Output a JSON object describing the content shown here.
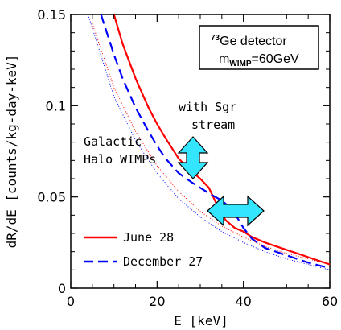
{
  "chart_data": {
    "type": "line",
    "xlabel": "E [keV]",
    "ylabel": "dR/dE [counts/kg-day-keV]",
    "xlim": [
      0,
      60
    ],
    "ylim": [
      0,
      0.15
    ],
    "x_ticks": [
      0,
      20,
      40,
      60
    ],
    "x_tick_labels": [
      "0",
      "20",
      "40",
      "60"
    ],
    "y_ticks": [
      0,
      0.05,
      0.1,
      0.15
    ],
    "y_tick_labels": [
      "0",
      "0.05",
      "0.1",
      "0.15"
    ],
    "grid": false,
    "legend_position": "bottom-left",
    "series": [
      {
        "name": "June 28",
        "color": "#ff0000",
        "style": "solid",
        "x": [
          10,
          12,
          15,
          18,
          20,
          22,
          25,
          28,
          30,
          32,
          33,
          34,
          35,
          36,
          38,
          40,
          42,
          45,
          50,
          55,
          60
        ],
        "y": [
          0.15,
          0.134,
          0.115,
          0.099,
          0.09,
          0.082,
          0.071,
          0.064,
          0.06,
          0.055,
          0.05,
          0.045,
          0.04,
          0.037,
          0.033,
          0.031,
          0.028,
          0.025,
          0.021,
          0.017,
          0.013
        ]
      },
      {
        "name": "December 27",
        "color": "#0000ff",
        "style": "dashed",
        "x": [
          7,
          10,
          12,
          15,
          18,
          20,
          22,
          25,
          28,
          30,
          32,
          35,
          37,
          38,
          40,
          42,
          45,
          50,
          55,
          60
        ],
        "y": [
          0.15,
          0.128,
          0.115,
          0.099,
          0.086,
          0.078,
          0.071,
          0.063,
          0.058,
          0.055,
          0.052,
          0.048,
          0.044,
          0.041,
          0.033,
          0.027,
          0.022,
          0.018,
          0.014,
          0.011
        ]
      },
      {
        "name": "Galactic Halo WIMPs (red dotted)",
        "color": "#ff0000",
        "style": "dotted",
        "x": [
          5,
          10,
          15,
          20,
          25,
          30,
          35,
          40,
          45,
          50,
          55,
          60
        ],
        "y": [
          0.145,
          0.11,
          0.086,
          0.067,
          0.053,
          0.042,
          0.034,
          0.028,
          0.023,
          0.019,
          0.016,
          0.013
        ]
      },
      {
        "name": "Galactic Halo WIMPs (blue dotted)",
        "color": "#0000ff",
        "style": "dotted",
        "x": [
          4,
          10,
          15,
          20,
          25,
          30,
          35,
          40,
          45,
          50,
          55,
          60
        ],
        "y": [
          0.15,
          0.105,
          0.081,
          0.063,
          0.049,
          0.039,
          0.031,
          0.025,
          0.02,
          0.016,
          0.013,
          0.01
        ]
      }
    ],
    "legend": [
      {
        "label": "June 28",
        "color": "#ff0000",
        "style": "solid"
      },
      {
        "label": "December 27",
        "color": "#0000ff",
        "style": "dashed"
      }
    ],
    "annotations": {
      "sgr_line1": "with Sgr",
      "sgr_line2": "stream",
      "halo_line1": "Galactic",
      "halo_line2": "Halo WIMPs",
      "detector_line1_sup": "73",
      "detector_line1": "Ge detector",
      "detector_line2_main": "m",
      "detector_line2_sub": "WIMP",
      "detector_line2_value": "=60GeV"
    },
    "arrow_color": "#33e5ff"
  }
}
